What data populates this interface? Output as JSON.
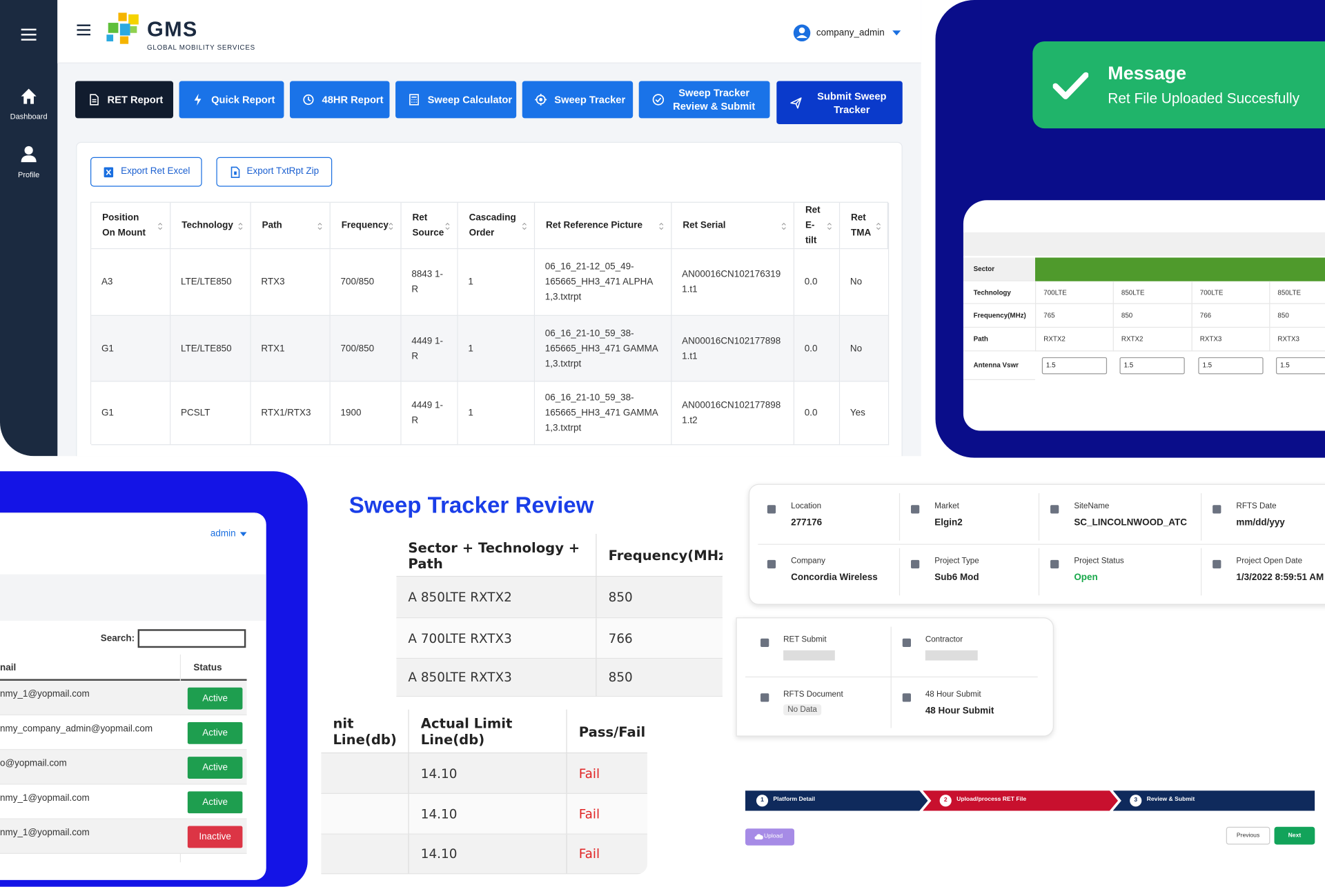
{
  "sidebar": {
    "items": [
      "Dashboard",
      "Profile"
    ]
  },
  "header": {
    "brand": "GMS",
    "tagline": "GLOBAL MOBILITY SERVICES",
    "user": "company_admin"
  },
  "toolbar": [
    "RET Report",
    "Quick Report",
    "48HR Report",
    "Sweep Calculator",
    "Sweep Tracker",
    "Sweep Tracker Review & Submit",
    "Submit Sweep Tracker"
  ],
  "exports": [
    "Export Ret Excel",
    "Export TxtRpt Zip"
  ],
  "ret_table": {
    "columns": [
      "Position On Mount",
      "Technology",
      "Path",
      "Frequency",
      "Ret Source",
      "Cascading Order",
      "Ret Reference Picture",
      "Ret Serial",
      "Ret E-tilt",
      "Ret TMA"
    ],
    "rows": [
      [
        "A3",
        "LTE/LTE850",
        "RTX3",
        "700/850",
        "8843 1-R",
        "1",
        "06_16_21-12_05_49-165665_HH3_471 ALPHA 1,3.txtrpt",
        "AN00016CN1021763191.t1",
        "0.0",
        "No"
      ],
      [
        "G1",
        "LTE/LTE850",
        "RTX1",
        "700/850",
        "4449 1-R",
        "1",
        "06_16_21-10_59_38-165665_HH3_471 GAMMA 1,3.txtrpt",
        "AN00016CN1021778981.t1",
        "0.0",
        "No"
      ],
      [
        "G1",
        "PCSLT",
        "RTX1/RTX3",
        "1900",
        "4449 1-R",
        "1",
        "06_16_21-10_59_38-165665_HH3_471 GAMMA 1,3.txtrpt",
        "AN00016CN1021778981.t2",
        "0.0",
        "Yes"
      ]
    ]
  },
  "message": {
    "title": "Message",
    "text": "Ret File Uploaded Succesfully"
  },
  "sweep_form": {
    "sector_label": "Sector",
    "rows": [
      [
        "Technology",
        "700LTE",
        "850LTE",
        "700LTE",
        "850LTE"
      ],
      [
        "Frequency(MHz)",
        "765",
        "850",
        "766",
        "850"
      ],
      [
        "Path",
        "RXTX2",
        "RXTX2",
        "RXTX3",
        "RXTX3"
      ]
    ],
    "vswr_label": "Antenna Vswr",
    "vswr_inputs": [
      "1.5",
      "1.5",
      "1.5",
      "1.5"
    ]
  },
  "users": {
    "user": "admin",
    "search_label": "Search:",
    "columns": [
      "nail",
      "Status"
    ],
    "rows": [
      {
        "email": "nmy_1@yopmail.com",
        "status": "Active",
        "color": "#1e9e4f"
      },
      {
        "email": "nmy_company_admin@yopmail.com",
        "status": "Active",
        "color": "#1e9e4f"
      },
      {
        "email": "o@yopmail.com",
        "status": "Active",
        "color": "#1e9e4f"
      },
      {
        "email": "nmy_1@yopmail.com",
        "status": "Active",
        "color": "#1e9e4f"
      },
      {
        "email": "nmy_1@yopmail.com",
        "status": "Inactive",
        "color": "#dc3545"
      }
    ]
  },
  "review": {
    "title": "Sweep Tracker Review",
    "table1": {
      "columns": [
        "Sector + Technology + Path",
        "Frequency(MHz)"
      ],
      "rows": [
        [
          "A 850LTE RXTX2",
          "850"
        ],
        [
          "A 700LTE RXTX3",
          "766"
        ],
        [
          "A 850LTE RXTX3",
          "850"
        ]
      ]
    },
    "table2": {
      "columns": [
        "nit Line(db)",
        "Actual Limit Line(db)",
        "Pass/Fail"
      ],
      "rows": [
        [
          "14.10",
          "Fail"
        ],
        [
          "14.10",
          "Fail"
        ],
        [
          "14.10",
          "Fail"
        ]
      ]
    }
  },
  "details": [
    {
      "label": "Location",
      "value": "277176"
    },
    {
      "label": "Market",
      "value": "Elgin2"
    },
    {
      "label": "SiteName",
      "value": "SC_LINCOLNWOOD_ATC"
    },
    {
      "label": "RFTS Date",
      "value": "mm/dd/yyy"
    },
    {
      "label": "Company",
      "value": "Concordia Wireless"
    },
    {
      "label": "Project Type",
      "value": "Sub6 Mod"
    },
    {
      "label": "Project Status",
      "value": "Open",
      "color": "#18a84a"
    },
    {
      "label": "Project Open Date",
      "value": "1/3/2022 8:59:51 AM"
    }
  ],
  "submission": [
    {
      "label": "RET Submit"
    },
    {
      "label": "Contractor"
    },
    {
      "label": "RFTS Document",
      "value": "No Data"
    },
    {
      "label": "48 Hour Submit",
      "value": "48 Hour Submit"
    }
  ],
  "steps": [
    {
      "number": 1,
      "label": "Platform Detail",
      "color": "#0f2a5c"
    },
    {
      "number": 2,
      "label": "Upload/process RET File",
      "color": "#c8102e"
    },
    {
      "number": 3,
      "label": "Review & Submit",
      "color": "#0f2a5c"
    }
  ],
  "buttons": {
    "upload": "Upload",
    "previous": "Previous",
    "next": "Next"
  }
}
